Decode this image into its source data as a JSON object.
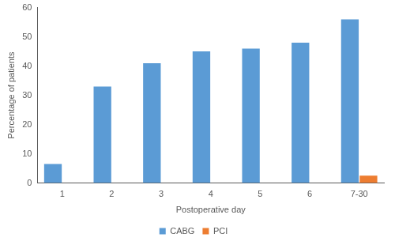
{
  "chart_data": {
    "type": "bar",
    "x_label": "Postoperative day",
    "y_label": "Percentage of patients",
    "categories": [
      "1",
      "2",
      "3",
      "4",
      "5",
      "6",
      "7-30"
    ],
    "series": [
      {
        "name": "CABG",
        "color": "#5b9bd5",
        "values": [
          6.5,
          33,
          41,
          45,
          46,
          48,
          56
        ]
      },
      {
        "name": "PCI",
        "color": "#ed7d31",
        "values": [
          0,
          0,
          0,
          0,
          0,
          0,
          2.5
        ]
      }
    ],
    "ylim": [
      0,
      60
    ],
    "yticks": [
      0,
      10,
      20,
      30,
      40,
      50,
      60
    ],
    "grid": false,
    "legend": "bottom"
  }
}
